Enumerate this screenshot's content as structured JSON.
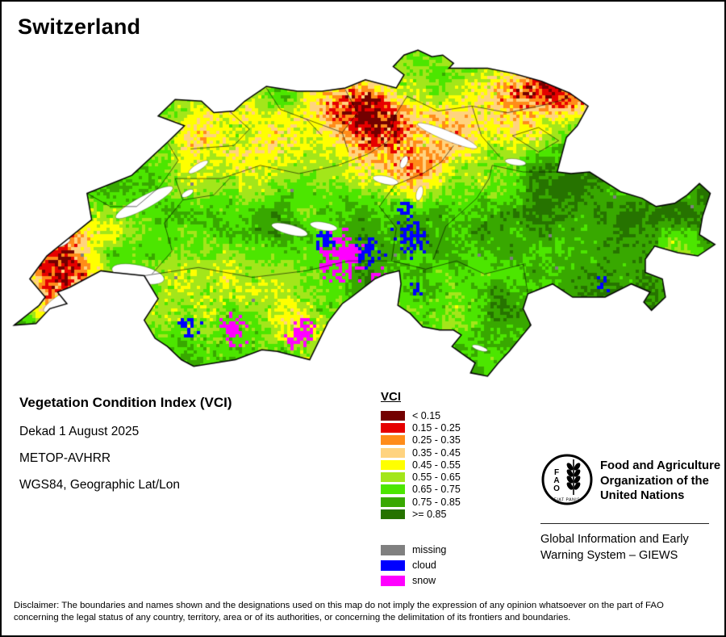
{
  "title": "Switzerland",
  "info": {
    "product": "Vegetation Condition Index (VCI)",
    "dekad": "Dekad 1 August 2025",
    "sensor": "METOP-AVHRR",
    "projection": "WGS84, Geographic Lat/Lon"
  },
  "legend": {
    "title": "VCI",
    "classes": [
      {
        "label": "< 0.15",
        "color": "#730000"
      },
      {
        "label": "0.15 - 0.25",
        "color": "#E60000"
      },
      {
        "label": "0.25 - 0.35",
        "color": "#FF8C19"
      },
      {
        "label": "0.35 - 0.45",
        "color": "#FFD37F"
      },
      {
        "label": "0.45 - 0.55",
        "color": "#FFFF00"
      },
      {
        "label": "0.55 - 0.65",
        "color": "#A3E61A"
      },
      {
        "label": "0.65 - 0.75",
        "color": "#4CE600"
      },
      {
        "label": "0.75 - 0.85",
        "color": "#38A800"
      },
      {
        "label": ">= 0.85",
        "color": "#267300"
      }
    ],
    "extras": [
      {
        "label": "missing",
        "color": "#808080"
      },
      {
        "label": "cloud",
        "color": "#0000FF"
      },
      {
        "label": "snow",
        "color": "#FF00FF"
      }
    ]
  },
  "fao": {
    "logo_letters": [
      "F",
      "A",
      "O"
    ],
    "logo_motto": "FIAT PANIS",
    "org_name_lines": [
      "Food and Agriculture",
      "Organization of the",
      "United Nations"
    ],
    "giews_lines": [
      "Global Information and Early",
      "Warning System – GIEWS"
    ]
  },
  "disclaimer_lines": [
    "Disclaimer: The boundaries and names shown and the designations used on this map do not imply the expression of any opinion whatsoever on the part of FAO",
    "concerning the legal status of any country, territory, area or of its authorities, or concerning the delimitation of its frontiers and boundaries."
  ]
}
